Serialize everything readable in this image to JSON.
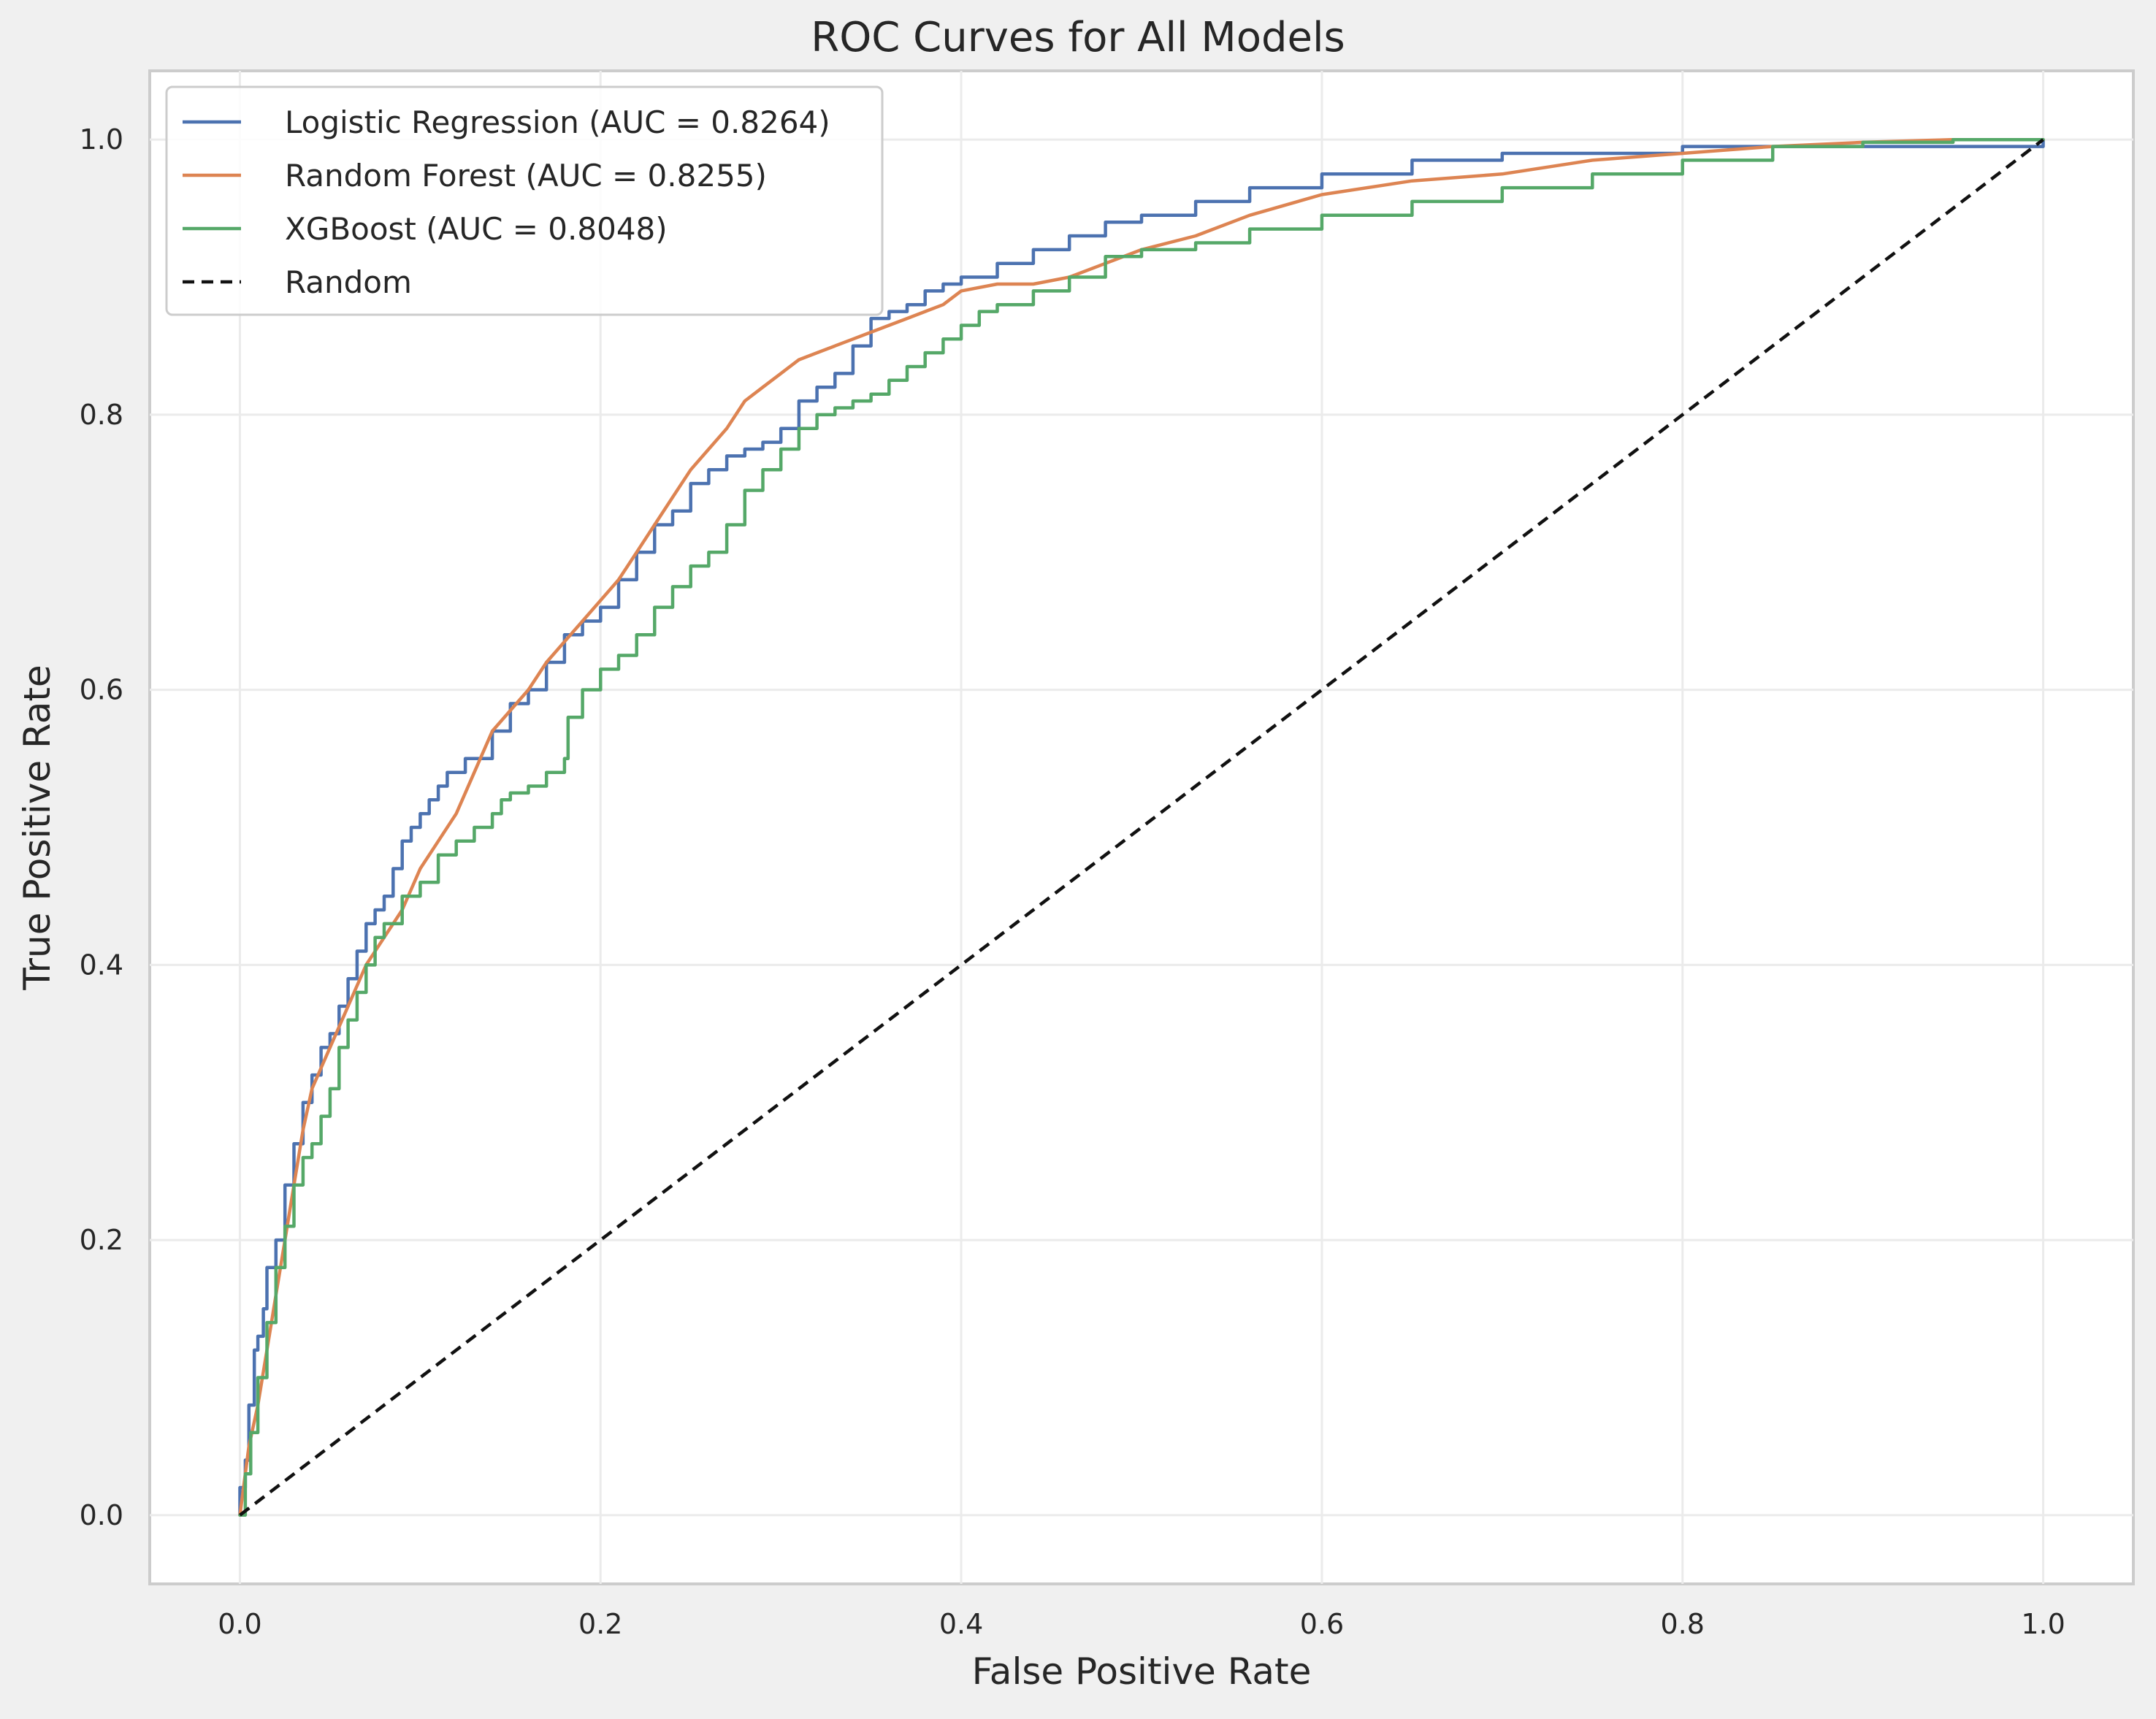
{
  "chart_data": {
    "type": "line",
    "title": "ROC Curves for All Models",
    "xlabel": "False Positive Rate",
    "ylabel": "True Positive Rate",
    "xlim": [
      -0.05,
      1.05
    ],
    "ylim": [
      -0.05,
      1.05
    ],
    "xticks": [
      0.0,
      0.2,
      0.4,
      0.6,
      0.8,
      1.0
    ],
    "yticks": [
      0.0,
      0.2,
      0.4,
      0.6,
      0.8,
      1.0
    ],
    "xtick_labels": [
      "0.0",
      "0.2",
      "0.4",
      "0.6",
      "0.8",
      "1.0"
    ],
    "ytick_labels": [
      "0.0",
      "0.2",
      "0.4",
      "0.6",
      "0.8",
      "1.0"
    ],
    "grid": true,
    "legend_position": "top-left",
    "series": [
      {
        "name": "Logistic Regression (AUC = 0.8264)",
        "color": "#4c72b0",
        "style": "step",
        "x": [
          0.0,
          0.0,
          0.003,
          0.005,
          0.008,
          0.01,
          0.013,
          0.015,
          0.02,
          0.025,
          0.03,
          0.035,
          0.04,
          0.045,
          0.05,
          0.055,
          0.06,
          0.065,
          0.07,
          0.075,
          0.08,
          0.085,
          0.09,
          0.095,
          0.1,
          0.105,
          0.11,
          0.115,
          0.12,
          0.125,
          0.13,
          0.14,
          0.15,
          0.155,
          0.16,
          0.17,
          0.18,
          0.19,
          0.2,
          0.21,
          0.22,
          0.23,
          0.24,
          0.25,
          0.26,
          0.27,
          0.28,
          0.29,
          0.3,
          0.31,
          0.32,
          0.33,
          0.34,
          0.35,
          0.36,
          0.37,
          0.38,
          0.39,
          0.4,
          0.42,
          0.44,
          0.46,
          0.48,
          0.5,
          0.53,
          0.56,
          0.6,
          0.65,
          0.7,
          0.75,
          0.8,
          0.85,
          0.9,
          0.95,
          1.0
        ],
        "y": [
          0.0,
          0.02,
          0.04,
          0.08,
          0.12,
          0.13,
          0.15,
          0.18,
          0.2,
          0.24,
          0.27,
          0.3,
          0.32,
          0.34,
          0.35,
          0.37,
          0.39,
          0.41,
          0.43,
          0.44,
          0.45,
          0.47,
          0.49,
          0.5,
          0.51,
          0.52,
          0.53,
          0.54,
          0.54,
          0.55,
          0.55,
          0.57,
          0.59,
          0.59,
          0.6,
          0.62,
          0.64,
          0.65,
          0.66,
          0.68,
          0.7,
          0.72,
          0.73,
          0.75,
          0.76,
          0.77,
          0.775,
          0.78,
          0.79,
          0.81,
          0.82,
          0.83,
          0.85,
          0.87,
          0.875,
          0.88,
          0.89,
          0.895,
          0.9,
          0.91,
          0.92,
          0.93,
          0.94,
          0.945,
          0.955,
          0.965,
          0.975,
          0.985,
          0.99,
          0.99,
          0.995,
          0.995,
          0.995,
          0.995,
          1.0
        ]
      },
      {
        "name": "Random Forest (AUC = 0.8255)",
        "color": "#dd8452",
        "style": "line",
        "x": [
          0.0,
          0.005,
          0.01,
          0.015,
          0.02,
          0.025,
          0.03,
          0.035,
          0.04,
          0.05,
          0.06,
          0.07,
          0.08,
          0.09,
          0.1,
          0.11,
          0.12,
          0.13,
          0.14,
          0.15,
          0.16,
          0.17,
          0.18,
          0.19,
          0.2,
          0.21,
          0.22,
          0.23,
          0.24,
          0.25,
          0.26,
          0.27,
          0.28,
          0.29,
          0.3,
          0.31,
          0.32,
          0.33,
          0.34,
          0.35,
          0.36,
          0.37,
          0.38,
          0.39,
          0.4,
          0.42,
          0.44,
          0.46,
          0.48,
          0.5,
          0.53,
          0.56,
          0.6,
          0.65,
          0.7,
          0.75,
          0.8,
          0.85,
          0.9,
          0.95,
          1.0
        ],
        "y": [
          0.0,
          0.05,
          0.08,
          0.12,
          0.16,
          0.2,
          0.24,
          0.28,
          0.31,
          0.34,
          0.37,
          0.4,
          0.42,
          0.44,
          0.47,
          0.49,
          0.51,
          0.54,
          0.57,
          0.585,
          0.6,
          0.62,
          0.635,
          0.65,
          0.665,
          0.68,
          0.7,
          0.72,
          0.74,
          0.76,
          0.775,
          0.79,
          0.81,
          0.82,
          0.83,
          0.84,
          0.845,
          0.85,
          0.855,
          0.86,
          0.865,
          0.87,
          0.875,
          0.88,
          0.89,
          0.895,
          0.895,
          0.9,
          0.91,
          0.92,
          0.93,
          0.945,
          0.96,
          0.97,
          0.975,
          0.985,
          0.99,
          0.995,
          0.998,
          1.0,
          1.0
        ]
      },
      {
        "name": "XGBoost (AUC = 0.8048)",
        "color": "#55a868",
        "style": "step",
        "x": [
          0.0,
          0.003,
          0.006,
          0.01,
          0.015,
          0.02,
          0.025,
          0.03,
          0.035,
          0.04,
          0.045,
          0.05,
          0.055,
          0.06,
          0.065,
          0.07,
          0.075,
          0.08,
          0.09,
          0.1,
          0.11,
          0.12,
          0.13,
          0.14,
          0.145,
          0.15,
          0.16,
          0.17,
          0.18,
          0.182,
          0.19,
          0.2,
          0.21,
          0.22,
          0.23,
          0.24,
          0.25,
          0.26,
          0.27,
          0.28,
          0.29,
          0.3,
          0.31,
          0.32,
          0.33,
          0.34,
          0.35,
          0.36,
          0.37,
          0.38,
          0.39,
          0.4,
          0.41,
          0.42,
          0.44,
          0.46,
          0.48,
          0.5,
          0.53,
          0.56,
          0.6,
          0.65,
          0.7,
          0.75,
          0.8,
          0.85,
          0.9,
          0.95,
          1.0
        ],
        "y": [
          0.0,
          0.03,
          0.06,
          0.1,
          0.14,
          0.18,
          0.21,
          0.24,
          0.26,
          0.27,
          0.29,
          0.31,
          0.34,
          0.36,
          0.38,
          0.4,
          0.42,
          0.43,
          0.45,
          0.46,
          0.48,
          0.49,
          0.5,
          0.51,
          0.52,
          0.525,
          0.53,
          0.54,
          0.55,
          0.58,
          0.6,
          0.615,
          0.625,
          0.64,
          0.66,
          0.675,
          0.69,
          0.7,
          0.72,
          0.745,
          0.76,
          0.775,
          0.79,
          0.8,
          0.805,
          0.81,
          0.815,
          0.825,
          0.835,
          0.845,
          0.855,
          0.865,
          0.875,
          0.88,
          0.89,
          0.9,
          0.915,
          0.92,
          0.925,
          0.935,
          0.945,
          0.955,
          0.965,
          0.975,
          0.985,
          0.995,
          0.998,
          1.0,
          1.0
        ]
      },
      {
        "name": "Random",
        "color": "#111111",
        "style": "dashed",
        "x": [
          0.0,
          1.0
        ],
        "y": [
          0.0,
          1.0
        ]
      }
    ]
  }
}
